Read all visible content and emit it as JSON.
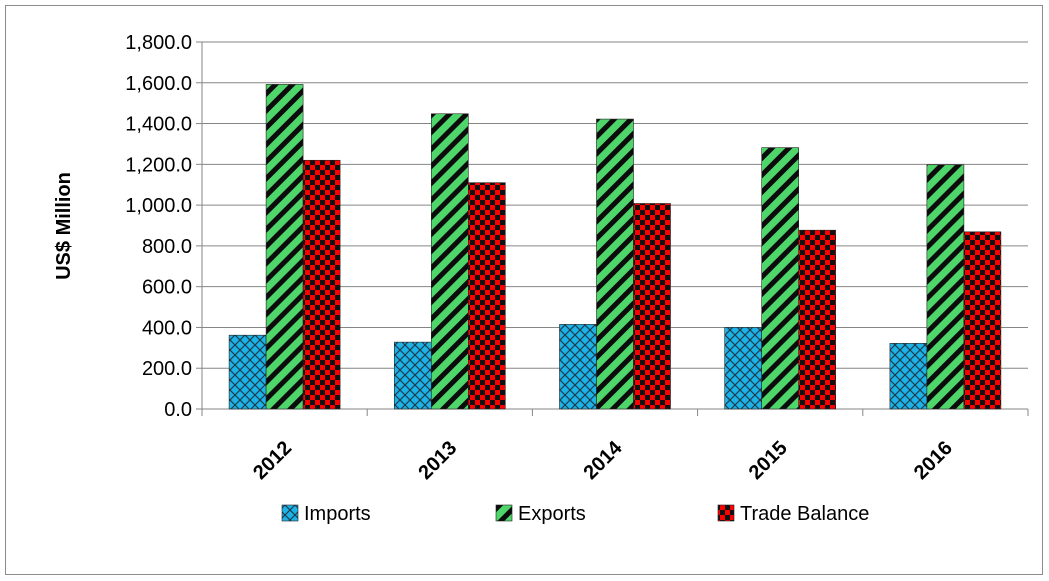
{
  "chart_data": {
    "type": "bar",
    "title": "",
    "xlabel": "",
    "ylabel": "US$ Million",
    "categories": [
      "2012",
      "2013",
      "2014",
      "2015",
      "2016"
    ],
    "ylim": [
      0,
      1800
    ],
    "yticks": [
      "0.0",
      "200.0",
      "400.0",
      "600.0",
      "800.0",
      "1,000.0",
      "1,200.0",
      "1,400.0",
      "1,600.0",
      "1,800.0"
    ],
    "grid": true,
    "legend_position": "bottom",
    "series": [
      {
        "name": "Imports",
        "values": [
          362,
          328,
          415,
          400,
          322
        ],
        "color": "#1cb4e8",
        "pattern": "crosshatch"
      },
      {
        "name": "Exports",
        "values": [
          1592,
          1448,
          1422,
          1282,
          1198
        ],
        "color": "#4fd66a",
        "pattern": "diagonal-stripes"
      },
      {
        "name": "Trade Balance",
        "values": [
          1220,
          1110,
          1008,
          877,
          869
        ],
        "color": "#ff0000",
        "pattern": "checkerboard"
      }
    ]
  }
}
